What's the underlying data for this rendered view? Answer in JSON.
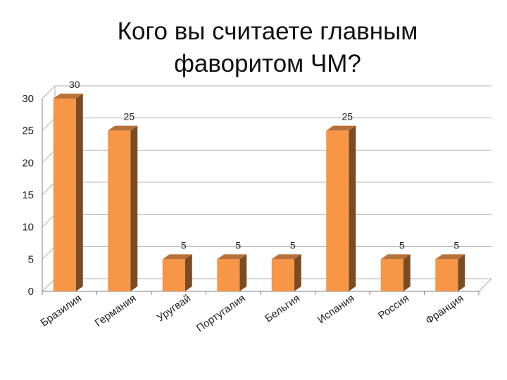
{
  "title_lines": [
    "Кого вы считаете главным",
    "фаворитом ЧМ?"
  ],
  "chart_data": {
    "type": "bar",
    "title": "Кого вы считаете главным фаворитом ЧМ?",
    "categories": [
      "Бразилия",
      "Германия",
      "Уругвай",
      "Португалия",
      "Бельгия",
      "Испания",
      "Россия",
      "Франция"
    ],
    "values": [
      30,
      25,
      5,
      5,
      5,
      25,
      5,
      5
    ],
    "data_labels": [
      "30",
      "25",
      "5",
      "5",
      "5",
      "25",
      "5",
      "5"
    ],
    "ylim": [
      0,
      30
    ],
    "yticks": [
      "0",
      "5",
      "10",
      "15",
      "20",
      "25",
      "30"
    ],
    "grid": true,
    "style": "3d-column",
    "colors": {
      "front": "#f79646",
      "side": "#7b4b23",
      "top": "#b87138",
      "grid": "#b0b0b0",
      "axis": "#808080"
    }
  }
}
